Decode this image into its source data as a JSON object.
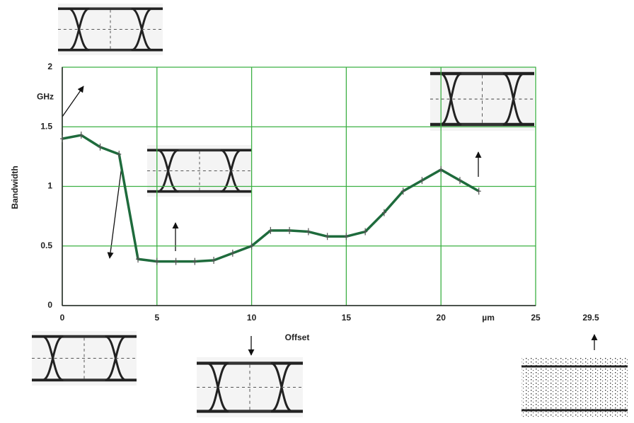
{
  "chart_data": {
    "type": "line",
    "x_label": "Offset",
    "y_label": "Bandwidth",
    "x": [
      0,
      1,
      2,
      3,
      4,
      5,
      6,
      7,
      8,
      9,
      10,
      11,
      12,
      13,
      14,
      15,
      16,
      17,
      18,
      19,
      20,
      21,
      22
    ],
    "values": [
      1.4,
      1.43,
      1.33,
      1.27,
      0.39,
      0.37,
      0.37,
      0.37,
      0.38,
      0.44,
      0.5,
      0.63,
      0.63,
      0.62,
      0.58,
      0.58,
      0.62,
      0.78,
      0.96,
      1.05,
      1.14,
      1.05,
      0.96
    ],
    "color": "#1e6b3c",
    "xlim": [
      0,
      25
    ],
    "xticks": [
      0,
      5,
      10,
      15,
      20,
      25
    ],
    "ylim": [
      0,
      2
    ],
    "yticks": [
      0,
      0.5,
      1,
      1.5,
      2
    ],
    "grid": true,
    "annotations": [
      "GHz",
      "µm",
      "29.5"
    ]
  }
}
